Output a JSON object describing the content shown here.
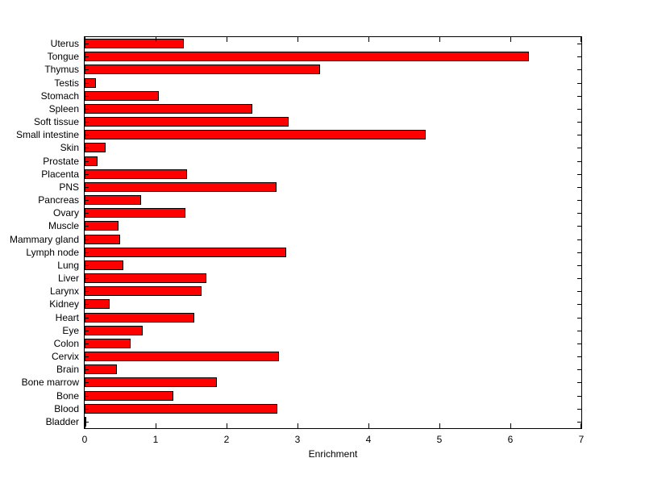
{
  "chart_data": {
    "type": "bar",
    "orientation": "horizontal",
    "title": "",
    "xlabel": "Enrichment",
    "ylabel": "",
    "xlim": [
      0,
      7
    ],
    "xticks": [
      0,
      1,
      2,
      3,
      4,
      5,
      6,
      7
    ],
    "grid": false,
    "legend": false,
    "bar_color": "#ff0000",
    "bar_edge_color": "#000000",
    "categories": [
      "Uterus",
      "Tongue",
      "Thymus",
      "Testis",
      "Stomach",
      "Spleen",
      "Soft tissue",
      "Small intestine",
      "Skin",
      "Prostate",
      "Placenta",
      "PNS",
      "Pancreas",
      "Ovary",
      "Muscle",
      "Mammary gland",
      "Lymph node",
      "Lung",
      "Liver",
      "Larynx",
      "Kidney",
      "Heart",
      "Eye",
      "Colon",
      "Cervix",
      "Brain",
      "Bone marrow",
      "Bone",
      "Blood",
      "Bladder"
    ],
    "values": [
      1.4,
      6.26,
      3.32,
      0.16,
      1.05,
      2.36,
      2.87,
      4.81,
      0.29,
      0.18,
      1.44,
      2.71,
      0.8,
      1.42,
      0.48,
      0.5,
      2.84,
      0.55,
      1.72,
      1.65,
      0.35,
      1.54,
      0.82,
      0.65,
      2.74,
      0.45,
      1.86,
      1.25,
      2.72,
      0.02
    ]
  }
}
